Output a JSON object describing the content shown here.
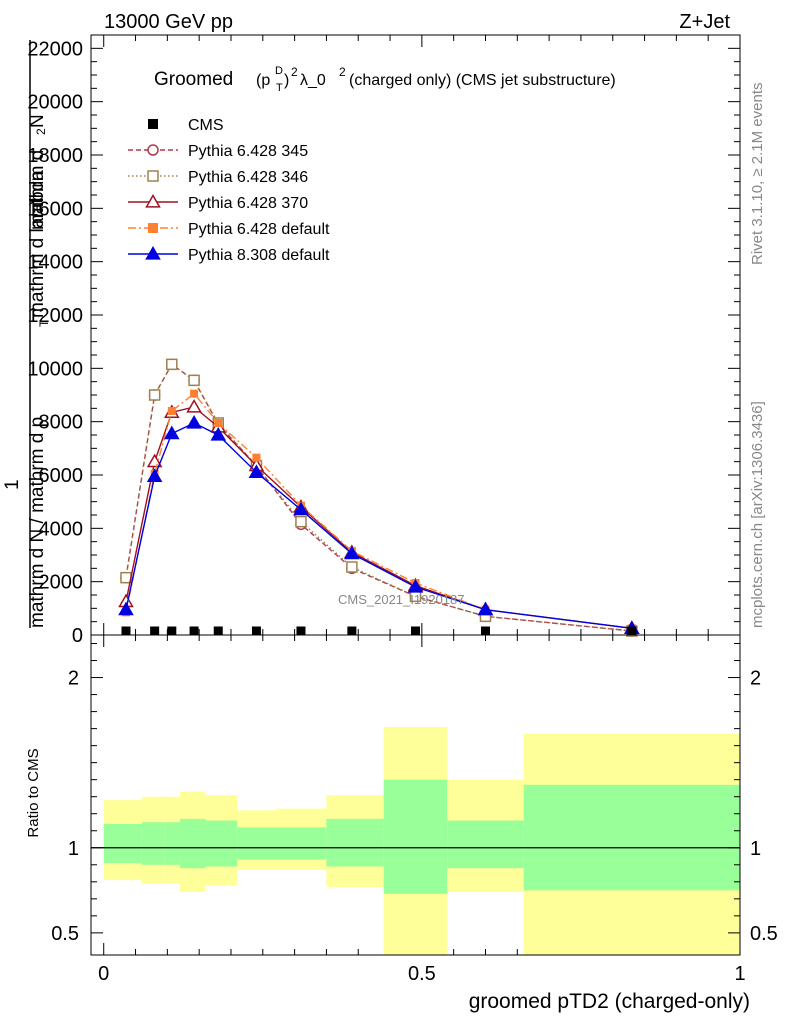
{
  "header": {
    "left": "13000 GeV pp",
    "right": "Z+Jet"
  },
  "plot_title": {
    "main": "Groomed",
    "p": "(p",
    "T": "T",
    "D": "D",
    "close": ")",
    "sq1": "2",
    "lambda": "λ_0",
    "sq2": "2",
    "rest": " (charged only) (CMS jet substructure)"
  },
  "side_labels": {
    "rivet": "Rivet 3.1.10, ≥ 2.1M events",
    "mcplots": "mcplots.cern.ch [arXiv:1306.3436]"
  },
  "watermark": "CMS_2021_I1920187",
  "main_y_label": {
    "num_prefix": "1",
    "denominator": "mathrm d N / mathrm d p",
    "denominator_sub": "T",
    "denominator_rest": " mathrm d lambda",
    "numerator": "mathrm d",
    "numerator_sup": "2",
    "numerator_rest": "N"
  },
  "ratio_y_label": "Ratio to CMS",
  "x_label": "groomed pTD2 (charged-only)",
  "colors": {
    "cms": "#000000",
    "p345": "#b03a48",
    "p346": "#a08050",
    "p370": "#a01020",
    "p6def": "#ff8030",
    "p8def": "#0000e0",
    "band_inner": "#99ff99",
    "band_outer": "#ffff99"
  },
  "legend": [
    {
      "label": "CMS",
      "key": "cms"
    },
    {
      "label": "Pythia 6.428 345",
      "key": "p345"
    },
    {
      "label": "Pythia 6.428 346",
      "key": "p346"
    },
    {
      "label": "Pythia 6.428 370",
      "key": "p370"
    },
    {
      "label": "Pythia 6.428 default",
      "key": "p6def"
    },
    {
      "label": "Pythia 8.308 default",
      "key": "p8def"
    }
  ],
  "chart_data": [
    {
      "type": "line",
      "xlim": [
        -0.02,
        1.0
      ],
      "ylim": [
        0,
        22500
      ],
      "y_ticks": [
        0,
        2000,
        4000,
        6000,
        8000,
        10000,
        12000,
        14000,
        16000,
        18000,
        20000,
        22000
      ],
      "y_tick_labels": [
        "0",
        "2000",
        "4000",
        "6000",
        "8000",
        "10000",
        "12000",
        "14000",
        "16000",
        "18000",
        "20000",
        "22000"
      ],
      "x": [
        0.035,
        0.08,
        0.107,
        0.142,
        0.18,
        0.24,
        0.31,
        0.39,
        0.49,
        0.6,
        0.83
      ],
      "series": [
        {
          "name": "CMS",
          "key": "cms",
          "marker": "square",
          "values": [
            60,
            60,
            70,
            60,
            50,
            40,
            40,
            40,
            40,
            40,
            30
          ]
        },
        {
          "name": "Pythia 6.428 345",
          "key": "p345",
          "marker": "circle",
          "dash": "5,3",
          "values": [
            2150,
            9000,
            10150,
            9550,
            7900,
            6350,
            4150,
            2500,
            1450,
            700,
            150
          ]
        },
        {
          "name": "Pythia 6.428 346",
          "key": "p346",
          "marker": "square-open",
          "dash": "1.5,2.5",
          "values": [
            2150,
            9000,
            10150,
            9550,
            7950,
            6350,
            4250,
            2550,
            1450,
            700,
            150
          ]
        },
        {
          "name": "Pythia 6.428 370",
          "key": "p370",
          "marker": "triangle-open",
          "dash": "",
          "values": [
            1250,
            6500,
            8350,
            8550,
            7800,
            6350,
            4800,
            3100,
            1850,
            950,
            250
          ]
        },
        {
          "name": "Pythia 6.428 default",
          "key": "p6def",
          "marker": "square",
          "dash": "8,3,2,3",
          "values": [
            850,
            6050,
            8400,
            9050,
            7950,
            6650,
            4850,
            3150,
            1950,
            950,
            250
          ]
        },
        {
          "name": "Pythia 8.308 default",
          "key": "p8def",
          "marker": "triangle",
          "dash": "",
          "values": [
            950,
            5950,
            7550,
            7950,
            7500,
            6100,
            4700,
            3050,
            1800,
            950,
            250
          ]
        }
      ]
    },
    {
      "type": "area",
      "title": "Ratio to CMS",
      "xlim": [
        -0.02,
        1.0
      ],
      "ylim": [
        0.37,
        2.25
      ],
      "y_ticks": [
        0.5,
        1,
        2
      ],
      "y_tick_labels": [
        "0.5",
        "1",
        "2"
      ],
      "x_ticks": [
        0,
        0.5,
        1
      ],
      "x_tick_labels": [
        "0",
        "0.5",
        "1"
      ],
      "bins": [
        {
          "x0": 0.0,
          "x1": 0.06,
          "in_lo": 0.91,
          "in_hi": 1.14,
          "out_lo": 0.81,
          "out_hi": 1.28
        },
        {
          "x0": 0.06,
          "x1": 0.095,
          "in_lo": 0.9,
          "in_hi": 1.15,
          "out_lo": 0.79,
          "out_hi": 1.3
        },
        {
          "x0": 0.095,
          "x1": 0.12,
          "in_lo": 0.9,
          "in_hi": 1.15,
          "out_lo": 0.79,
          "out_hi": 1.3
        },
        {
          "x0": 0.12,
          "x1": 0.16,
          "in_lo": 0.88,
          "in_hi": 1.17,
          "out_lo": 0.74,
          "out_hi": 1.33
        },
        {
          "x0": 0.16,
          "x1": 0.21,
          "in_lo": 0.89,
          "in_hi": 1.16,
          "out_lo": 0.78,
          "out_hi": 1.31
        },
        {
          "x0": 0.21,
          "x1": 0.27,
          "in_lo": 0.93,
          "in_hi": 1.12,
          "out_lo": 0.87,
          "out_hi": 1.22
        },
        {
          "x0": 0.27,
          "x1": 0.35,
          "in_lo": 0.93,
          "in_hi": 1.12,
          "out_lo": 0.87,
          "out_hi": 1.23
        },
        {
          "x0": 0.35,
          "x1": 0.44,
          "in_lo": 0.89,
          "in_hi": 1.17,
          "out_lo": 0.77,
          "out_hi": 1.31
        },
        {
          "x0": 0.44,
          "x1": 0.54,
          "in_lo": 0.73,
          "in_hi": 1.4,
          "out_lo": 0.2,
          "out_hi": 1.71
        },
        {
          "x0": 0.54,
          "x1": 0.66,
          "in_lo": 0.88,
          "in_hi": 1.16,
          "out_lo": 0.74,
          "out_hi": 1.4
        },
        {
          "x0": 0.66,
          "x1": 1.0,
          "in_lo": 0.75,
          "in_hi": 1.37,
          "out_lo": 0.2,
          "out_hi": 1.67
        }
      ]
    }
  ]
}
